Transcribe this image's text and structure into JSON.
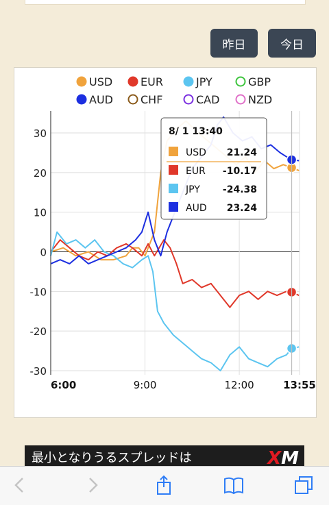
{
  "buttons": {
    "yesterday": "昨日",
    "today": "今日"
  },
  "legend": [
    {
      "label": "USD",
      "color": "#f0a33c",
      "filled": true
    },
    {
      "label": "EUR",
      "color": "#e0382a",
      "filled": true
    },
    {
      "label": "JPY",
      "color": "#5cc5f0",
      "filled": true
    },
    {
      "label": "GBP",
      "color": "#3cc43c",
      "filled": false
    },
    {
      "label": "AUD",
      "color": "#1c2fe0",
      "filled": true
    },
    {
      "label": "CHF",
      "color": "#8a5a1a",
      "filled": false
    },
    {
      "label": "CAD",
      "color": "#7a2fe0",
      "filled": false
    },
    {
      "label": "NZD",
      "color": "#e070c8",
      "filled": false
    }
  ],
  "tooltip": {
    "title": "8/ 1 13:40",
    "rows": [
      {
        "label": "USD",
        "value": "21.24",
        "color": "#f0a33c"
      },
      {
        "label": "EUR",
        "value": "-10.17",
        "color": "#e0382a"
      },
      {
        "label": "JPY",
        "value": "-24.38",
        "color": "#5cc5f0"
      },
      {
        "label": "AUD",
        "value": "23.24",
        "color": "#1c2fe0"
      }
    ]
  },
  "chart_data": {
    "type": "line",
    "x_ticks": [
      "6:00",
      "9:00",
      "12:00",
      "13:55"
    ],
    "y_ticks": [
      "30",
      "20",
      "10",
      "0",
      "-10",
      "-20",
      "-30"
    ],
    "ylim": [
      -30,
      35
    ],
    "xlim_hours": [
      6.0,
      13.9167
    ],
    "grid": true,
    "legend_position": "top",
    "series": [
      {
        "name": "USD",
        "color": "#f0a33c",
        "points": [
          [
            6.0,
            0
          ],
          [
            6.4,
            1
          ],
          [
            6.8,
            -1
          ],
          [
            7.2,
            0
          ],
          [
            7.6,
            -2
          ],
          [
            8.0,
            -2
          ],
          [
            8.4,
            -1
          ],
          [
            8.6,
            1
          ],
          [
            8.8,
            1
          ],
          [
            9.0,
            -1
          ],
          [
            9.3,
            5
          ],
          [
            9.5,
            20
          ],
          [
            9.7,
            28
          ],
          [
            10.0,
            31
          ],
          [
            10.3,
            33
          ],
          [
            10.7,
            30
          ],
          [
            11.0,
            28
          ],
          [
            11.3,
            26
          ],
          [
            11.6,
            24
          ],
          [
            11.9,
            22
          ],
          [
            12.2,
            24
          ],
          [
            12.5,
            20
          ],
          [
            12.8,
            23
          ],
          [
            13.1,
            21
          ],
          [
            13.4,
            22
          ],
          [
            13.667,
            21.24
          ],
          [
            13.9,
            20.5
          ]
        ]
      },
      {
        "name": "EUR",
        "color": "#e0382a",
        "points": [
          [
            6.0,
            0
          ],
          [
            6.3,
            3
          ],
          [
            6.6,
            1
          ],
          [
            6.9,
            -1
          ],
          [
            7.2,
            -2
          ],
          [
            7.5,
            0
          ],
          [
            7.8,
            -1
          ],
          [
            8.1,
            1
          ],
          [
            8.4,
            2
          ],
          [
            8.6,
            1
          ],
          [
            8.9,
            -1
          ],
          [
            9.1,
            2
          ],
          [
            9.3,
            -1
          ],
          [
            9.6,
            3
          ],
          [
            9.8,
            1
          ],
          [
            10.0,
            -3
          ],
          [
            10.2,
            -8
          ],
          [
            10.5,
            -7
          ],
          [
            10.8,
            -9
          ],
          [
            11.1,
            -8
          ],
          [
            11.4,
            -11
          ],
          [
            11.7,
            -14
          ],
          [
            12.0,
            -11
          ],
          [
            12.3,
            -10
          ],
          [
            12.6,
            -12
          ],
          [
            12.9,
            -10
          ],
          [
            13.2,
            -11
          ],
          [
            13.5,
            -10
          ],
          [
            13.667,
            -10.17
          ],
          [
            13.9,
            -11
          ]
        ]
      },
      {
        "name": "JPY",
        "color": "#5cc5f0",
        "points": [
          [
            6.0,
            -1
          ],
          [
            6.2,
            5
          ],
          [
            6.5,
            2
          ],
          [
            6.8,
            3
          ],
          [
            7.1,
            1
          ],
          [
            7.4,
            3
          ],
          [
            7.7,
            0
          ],
          [
            8.0,
            -1
          ],
          [
            8.3,
            -3
          ],
          [
            8.6,
            -4
          ],
          [
            8.9,
            -2
          ],
          [
            9.1,
            -1
          ],
          [
            9.25,
            -5
          ],
          [
            9.4,
            -15
          ],
          [
            9.6,
            -18
          ],
          [
            9.9,
            -21
          ],
          [
            10.2,
            -23
          ],
          [
            10.5,
            -25
          ],
          [
            10.8,
            -27
          ],
          [
            11.1,
            -28
          ],
          [
            11.4,
            -30
          ],
          [
            11.7,
            -26
          ],
          [
            12.0,
            -24
          ],
          [
            12.3,
            -27
          ],
          [
            12.6,
            -28
          ],
          [
            12.9,
            -29
          ],
          [
            13.2,
            -27
          ],
          [
            13.5,
            -26
          ],
          [
            13.667,
            -24.38
          ],
          [
            13.9,
            -24
          ]
        ]
      },
      {
        "name": "AUD",
        "color": "#1c2fe0",
        "points": [
          [
            6.0,
            -3
          ],
          [
            6.3,
            -2
          ],
          [
            6.6,
            -3
          ],
          [
            6.9,
            -1
          ],
          [
            7.2,
            -3
          ],
          [
            7.5,
            -2
          ],
          [
            7.8,
            -1
          ],
          [
            8.1,
            0
          ],
          [
            8.4,
            1
          ],
          [
            8.7,
            3
          ],
          [
            8.9,
            5
          ],
          [
            9.1,
            10
          ],
          [
            9.3,
            3
          ],
          [
            9.5,
            -1
          ],
          [
            9.7,
            5
          ],
          [
            9.9,
            9
          ],
          [
            10.1,
            13
          ],
          [
            10.3,
            17
          ],
          [
            10.5,
            21
          ],
          [
            10.8,
            24
          ],
          [
            11.1,
            27
          ],
          [
            11.3,
            32
          ],
          [
            11.5,
            34
          ],
          [
            11.8,
            30
          ],
          [
            12.1,
            28
          ],
          [
            12.4,
            29
          ],
          [
            12.7,
            26
          ],
          [
            13.0,
            27
          ],
          [
            13.3,
            25
          ],
          [
            13.5,
            24
          ],
          [
            13.667,
            23.24
          ],
          [
            13.9,
            23
          ]
        ]
      }
    ],
    "crosshair_x": 13.667
  }
}
